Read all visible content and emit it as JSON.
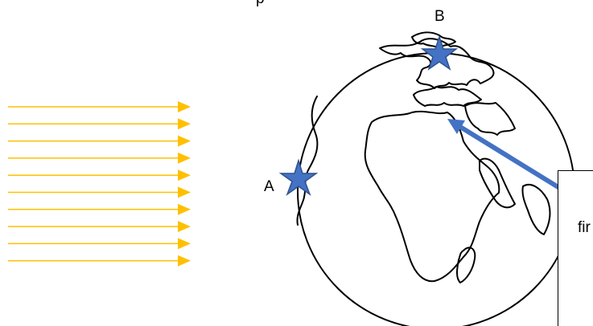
{
  "labels": {
    "top_caption": "p",
    "point_a": "A",
    "point_b": "B",
    "text_box": "fir"
  },
  "sun_rays": {
    "count": 10
  },
  "colors": {
    "ray": "#ffc000",
    "star_fill": "#4472c4",
    "star_stroke": "#2f528f",
    "arrow": "#4472c4",
    "outline": "#000000"
  }
}
